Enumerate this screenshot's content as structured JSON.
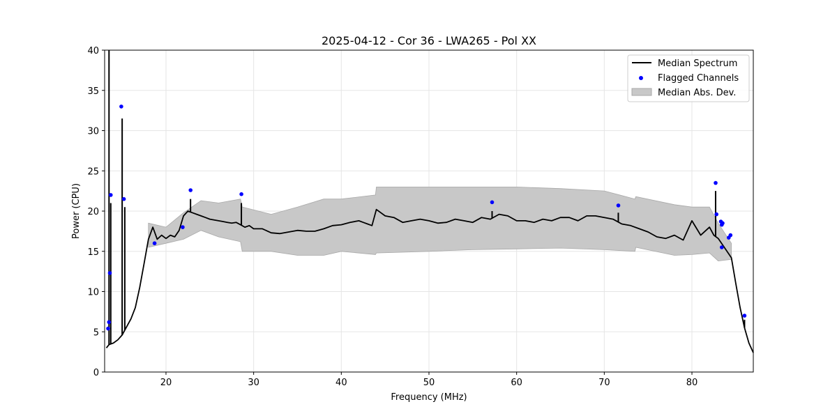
{
  "chart_data": {
    "type": "line",
    "title": "2025-04-12 - Cor 36 - LWA265 - Pol XX",
    "xlabel": "Frequency (MHz)",
    "ylabel": "Power (CPU)",
    "xlim": [
      13,
      87
    ],
    "ylim": [
      0,
      40
    ],
    "xticks": [
      20,
      30,
      40,
      50,
      60,
      70,
      80
    ],
    "yticks": [
      0,
      5,
      10,
      15,
      20,
      25,
      30,
      35,
      40
    ],
    "grid": true,
    "legend_position": "top-right",
    "legend": [
      {
        "label": "Median Spectrum",
        "kind": "line",
        "color": "#000000"
      },
      {
        "label": "Flagged Channels",
        "kind": "marker",
        "color": "#0000ff"
      },
      {
        "label": "Median Abs. Dev.",
        "kind": "band",
        "color": "#c8c8c8"
      }
    ],
    "median_spectrum": {
      "x": [
        13.2,
        13.5,
        14.0,
        14.5,
        15.0,
        15.5,
        16.0,
        16.5,
        17.0,
        17.5,
        18.0,
        18.5,
        19.0,
        19.5,
        20.0,
        20.5,
        21.0,
        21.5,
        22.0,
        22.5,
        23.0,
        23.5,
        24.0,
        24.5,
        25.0,
        25.5,
        26.0,
        26.5,
        27.0,
        27.5,
        28.0,
        28.5,
        29.0,
        29.5,
        30.0,
        31.0,
        32.0,
        33.0,
        34.0,
        35.0,
        36.0,
        37.0,
        38.0,
        39.0,
        40.0,
        41.0,
        42.0,
        42.5,
        43.0,
        43.5,
        44.0,
        45.0,
        46.0,
        47.0,
        48.0,
        49.0,
        50.0,
        51.0,
        52.0,
        53.0,
        54.0,
        55.0,
        56.0,
        57.0,
        58.0,
        59.0,
        60.0,
        61.0,
        62.0,
        63.0,
        64.0,
        65.0,
        66.0,
        67.0,
        68.0,
        69.0,
        70.0,
        71.0,
        72.0,
        73.0,
        74.0,
        75.0,
        76.0,
        77.0,
        78.0,
        79.0,
        80.0,
        81.0,
        82.0,
        82.5,
        83.0,
        83.5,
        84.0,
        84.5,
        85.0,
        85.5,
        86.0,
        86.5,
        87.0
      ],
      "y": [
        3.0,
        3.4,
        3.6,
        4.0,
        4.6,
        5.6,
        6.6,
        8.0,
        10.5,
        13.5,
        16.5,
        18.0,
        16.5,
        17.0,
        16.6,
        17.0,
        16.8,
        17.6,
        19.4,
        20.0,
        19.8,
        19.6,
        19.4,
        19.2,
        19.0,
        18.9,
        18.8,
        18.7,
        18.6,
        18.5,
        18.6,
        18.3,
        18.0,
        18.2,
        17.8,
        17.8,
        17.3,
        17.2,
        17.4,
        17.6,
        17.5,
        17.5,
        17.8,
        18.2,
        18.3,
        18.6,
        18.8,
        18.6,
        18.4,
        18.2,
        20.2,
        19.4,
        19.2,
        18.6,
        18.8,
        19.0,
        18.8,
        18.5,
        18.6,
        19.0,
        18.8,
        18.6,
        19.2,
        19.0,
        19.6,
        19.4,
        18.8,
        18.8,
        18.6,
        19.0,
        18.8,
        19.2,
        19.2,
        18.8,
        19.4,
        19.4,
        19.2,
        19.0,
        18.4,
        18.2,
        17.8,
        17.4,
        16.8,
        16.6,
        17.0,
        16.4,
        18.8,
        17.0,
        18.0,
        17.0,
        16.6,
        15.8,
        15.0,
        14.2,
        11.0,
        8.0,
        5.5,
        3.6,
        2.4
      ]
    },
    "mad_band": {
      "x": [
        18.0,
        20.0,
        22.0,
        24.0,
        26.0,
        28.5,
        28.7,
        32.0,
        35.0,
        38.0,
        40.0,
        43.9,
        44.0,
        50.0,
        55.0,
        60.0,
        65.0,
        70.0,
        73.5,
        73.6,
        78.0,
        80.0,
        82.0,
        83.0,
        84.5
      ],
      "upper": [
        18.5,
        18.0,
        19.8,
        21.3,
        21.0,
        21.5,
        20.5,
        19.6,
        20.5,
        21.5,
        21.5,
        22.0,
        23.0,
        23.0,
        23.0,
        23.0,
        22.8,
        22.5,
        21.5,
        21.8,
        20.8,
        20.5,
        20.5,
        18.5,
        16.0
      ],
      "lower": [
        15.5,
        16.0,
        16.5,
        17.6,
        16.8,
        16.2,
        15.0,
        15.0,
        14.5,
        14.5,
        15.0,
        14.6,
        14.8,
        15.0,
        15.2,
        15.3,
        15.4,
        15.2,
        15.0,
        15.5,
        14.5,
        14.6,
        14.8,
        13.8,
        14.0
      ]
    },
    "spikes": [
      {
        "x": 13.5,
        "peak": 40.0
      },
      {
        "x": 13.7,
        "peak": 21.0
      },
      {
        "x": 15.0,
        "peak": 31.5
      },
      {
        "x": 15.3,
        "peak": 20.5
      },
      {
        "x": 22.8,
        "peak": 21.5
      },
      {
        "x": 28.6,
        "peak": 21.0
      },
      {
        "x": 57.2,
        "peak": 20.0
      },
      {
        "x": 71.6,
        "peak": 19.8
      },
      {
        "x": 82.7,
        "peak": 22.5
      },
      {
        "x": 86.0,
        "peak": 6.5
      }
    ],
    "flagged_channels": {
      "x": [
        13.4,
        13.5,
        13.6,
        13.7,
        14.9,
        15.2,
        18.7,
        21.9,
        22.8,
        28.6,
        57.2,
        71.6,
        82.7,
        82.8,
        83.3,
        83.4,
        83.5,
        83.4,
        84.2,
        84.4,
        86.0
      ],
      "y": [
        5.4,
        6.2,
        12.3,
        22.0,
        33.0,
        21.5,
        16.0,
        18.0,
        22.6,
        22.1,
        21.1,
        20.7,
        23.5,
        19.6,
        18.7,
        18.3,
        18.5,
        15.5,
        16.7,
        17.0,
        7.0
      ]
    }
  }
}
